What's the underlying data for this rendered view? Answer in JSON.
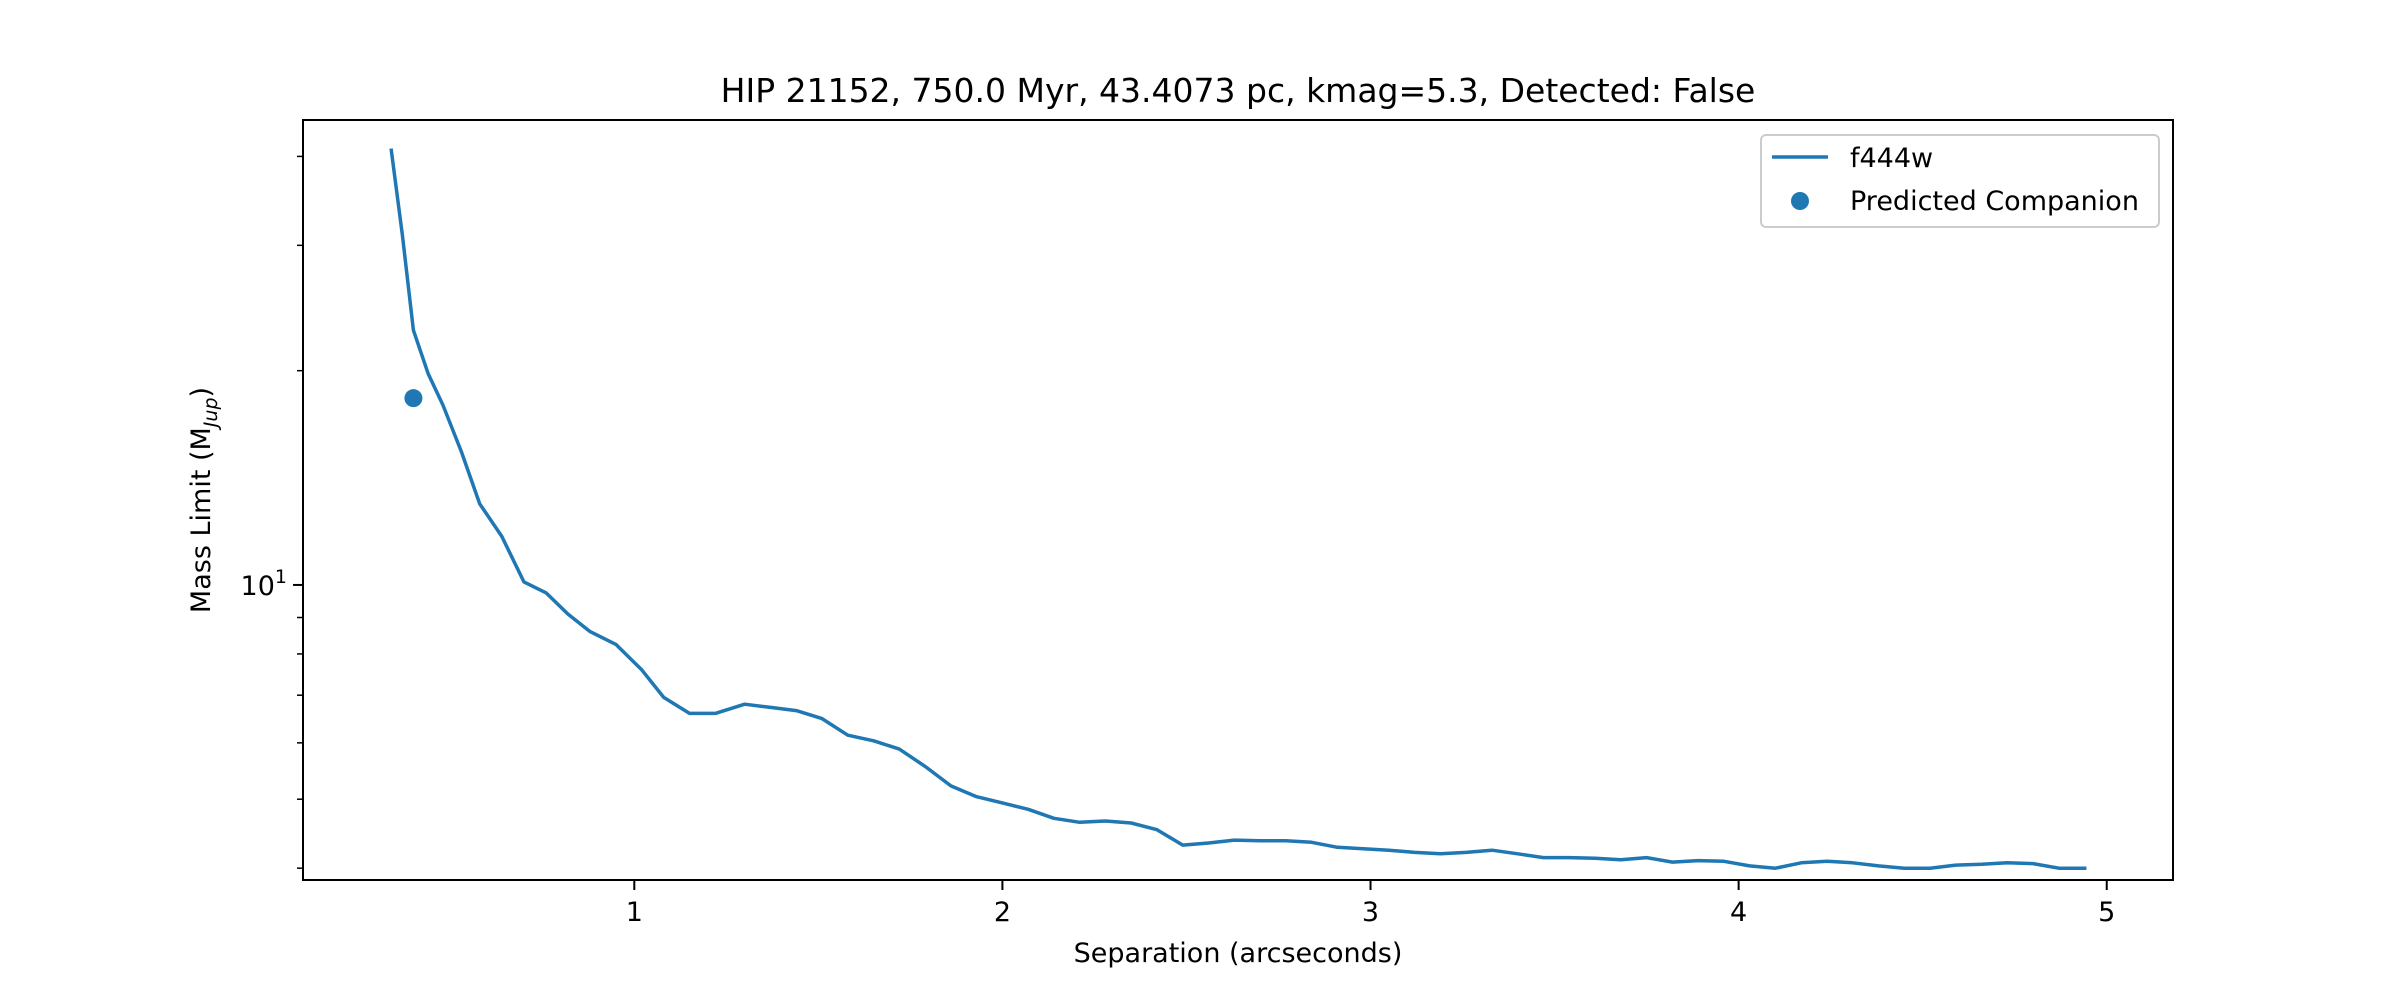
{
  "chart_data": {
    "type": "line",
    "title": "HIP 21152, 750.0 Myr, 43.4073 pc, kmag=5.3, Detected: False",
    "xlabel": "Separation (arcseconds)",
    "ylabel": "Mass Limit (M",
    "ylabel_sub": "Jup",
    "ylabel_close": ")",
    "xlim": [
      0.1,
      5.18
    ],
    "ylim": [
      3.85,
      45.0
    ],
    "yscale": "log",
    "grid": false,
    "legend_position": "top-right",
    "xticks": [
      {
        "value": 1,
        "label": "1"
      },
      {
        "value": 2,
        "label": "2"
      },
      {
        "value": 3,
        "label": "3"
      },
      {
        "value": 4,
        "label": "4"
      },
      {
        "value": 5,
        "label": "5"
      }
    ],
    "yticks_major": [
      {
        "value": 10,
        "base": "10",
        "exp": "1"
      }
    ],
    "yticks_minor": [
      4,
      5,
      6,
      7,
      8,
      9,
      20,
      30,
      40
    ],
    "series": [
      {
        "name": "f444w",
        "kind": "line",
        "color": "#1f77b4",
        "x": [
          0.34,
          0.37,
          0.4,
          0.44,
          0.48,
          0.53,
          0.58,
          0.64,
          0.7,
          0.76,
          0.82,
          0.88,
          0.95,
          1.02,
          1.08,
          1.15,
          1.22,
          1.3,
          1.37,
          1.44,
          1.51,
          1.58,
          1.65,
          1.72,
          1.79,
          1.86,
          1.93,
          2.0,
          2.07,
          2.14,
          2.21,
          2.28,
          2.35,
          2.42,
          2.49,
          2.56,
          2.63,
          2.7,
          2.77,
          2.84,
          2.91,
          2.98,
          3.05,
          3.12,
          3.19,
          3.26,
          3.33,
          3.4,
          3.47,
          3.54,
          3.61,
          3.68,
          3.75,
          3.82,
          3.89,
          3.96,
          4.03,
          4.1,
          4.17,
          4.24,
          4.31,
          4.38,
          4.45,
          4.52,
          4.59,
          4.66,
          4.73,
          4.8,
          4.87,
          4.94
        ],
        "y": [
          40.8,
          31.0,
          22.8,
          19.8,
          17.9,
          15.4,
          13.0,
          11.7,
          10.1,
          9.75,
          9.1,
          8.6,
          8.25,
          7.6,
          6.95,
          6.6,
          6.6,
          6.8,
          6.73,
          6.66,
          6.49,
          6.15,
          6.04,
          5.88,
          5.56,
          5.22,
          5.04,
          4.94,
          4.84,
          4.7,
          4.64,
          4.66,
          4.63,
          4.53,
          4.31,
          4.34,
          4.38,
          4.37,
          4.37,
          4.35,
          4.28,
          4.26,
          4.24,
          4.21,
          4.19,
          4.21,
          4.24,
          4.19,
          4.14,
          4.14,
          4.13,
          4.11,
          4.14,
          4.08,
          4.1,
          4.09,
          4.03,
          4.0,
          4.07,
          4.09,
          4.07,
          4.03,
          4.0,
          4.0,
          4.04,
          4.05,
          4.07,
          4.06,
          4.0,
          4.0
        ]
      },
      {
        "name": "Predicted Companion",
        "kind": "scatter",
        "color": "#1f77b4",
        "x": [
          0.4
        ],
        "y": [
          18.3
        ]
      }
    ]
  }
}
